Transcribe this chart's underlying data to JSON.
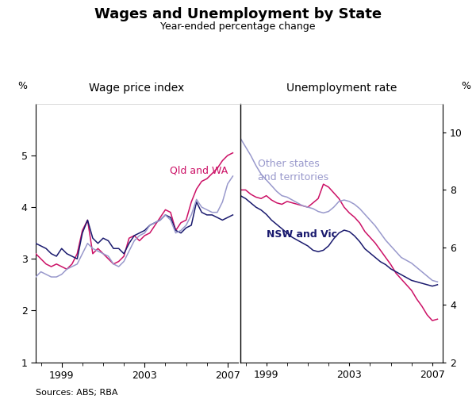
{
  "title": "Wages and Unemployment by State",
  "subtitle": "Year-ended percentage change",
  "left_panel_title": "Wage price index",
  "right_panel_title": "Unemployment rate",
  "source": "Sources: ABS; RBA",
  "left_ylabel": "%",
  "right_ylabel": "%",
  "left_ylim": [
    1,
    6
  ],
  "right_ylim": [
    2,
    11
  ],
  "left_yticks": [
    1,
    2,
    3,
    4,
    5
  ],
  "right_yticks": [
    2,
    4,
    6,
    8,
    10
  ],
  "left_ytick_labels": [
    "1",
    "2",
    "3",
    "4",
    "5"
  ],
  "right_ytick_labels": [
    "2",
    "4",
    "6",
    "8",
    "10"
  ],
  "background_color": "#f0f0f0",
  "panel_bg": "#f0f0f0",
  "grid_color": "#ffffff",
  "wpi_x": [
    1997.75,
    1998.0,
    1998.25,
    1998.5,
    1998.75,
    1999.0,
    1999.25,
    1999.5,
    1999.75,
    2000.0,
    2000.25,
    2000.5,
    2000.75,
    2001.0,
    2001.25,
    2001.5,
    2001.75,
    2002.0,
    2002.25,
    2002.5,
    2002.75,
    2003.0,
    2003.25,
    2003.5,
    2003.75,
    2004.0,
    2004.25,
    2004.5,
    2004.75,
    2005.0,
    2005.25,
    2005.5,
    2005.75,
    2006.0,
    2006.25,
    2006.5,
    2006.75,
    2007.0,
    2007.25
  ],
  "wpi_qldwa": [
    3.1,
    3.0,
    2.9,
    2.85,
    2.9,
    2.85,
    2.8,
    2.9,
    3.1,
    3.55,
    3.75,
    3.1,
    3.2,
    3.1,
    3.0,
    2.9,
    2.95,
    3.05,
    3.4,
    3.45,
    3.35,
    3.45,
    3.5,
    3.65,
    3.8,
    3.95,
    3.9,
    3.55,
    3.7,
    3.75,
    4.1,
    4.35,
    4.5,
    4.55,
    4.65,
    4.75,
    4.9,
    5.0,
    5.05
  ],
  "wpi_nswvic": [
    3.3,
    3.25,
    3.2,
    3.1,
    3.05,
    3.2,
    3.1,
    3.05,
    3.0,
    3.5,
    3.75,
    3.4,
    3.3,
    3.4,
    3.35,
    3.2,
    3.2,
    3.1,
    3.3,
    3.45,
    3.5,
    3.55,
    3.65,
    3.7,
    3.75,
    3.85,
    3.8,
    3.55,
    3.5,
    3.6,
    3.65,
    4.1,
    3.9,
    3.85,
    3.85,
    3.8,
    3.75,
    3.8,
    3.85
  ],
  "wpi_other": [
    2.65,
    2.75,
    2.7,
    2.65,
    2.65,
    2.7,
    2.8,
    2.85,
    2.9,
    3.1,
    3.3,
    3.2,
    3.15,
    3.1,
    3.05,
    2.9,
    2.85,
    2.95,
    3.15,
    3.35,
    3.45,
    3.5,
    3.65,
    3.7,
    3.75,
    3.85,
    3.75,
    3.5,
    3.55,
    3.65,
    3.85,
    4.15,
    4.0,
    3.95,
    3.9,
    3.9,
    4.1,
    4.45,
    4.6
  ],
  "unemp_x": [
    1997.75,
    1998.0,
    1998.25,
    1998.5,
    1998.75,
    1999.0,
    1999.25,
    1999.5,
    1999.75,
    2000.0,
    2000.25,
    2000.5,
    2000.75,
    2001.0,
    2001.25,
    2001.5,
    2001.75,
    2002.0,
    2002.25,
    2002.5,
    2002.75,
    2003.0,
    2003.25,
    2003.5,
    2003.75,
    2004.0,
    2004.25,
    2004.5,
    2004.75,
    2005.0,
    2005.25,
    2005.5,
    2005.75,
    2006.0,
    2006.25,
    2006.5,
    2006.75,
    2007.0,
    2007.25
  ],
  "unemp_qldwa": [
    8.0,
    8.0,
    7.85,
    7.75,
    7.7,
    7.8,
    7.65,
    7.55,
    7.5,
    7.6,
    7.55,
    7.5,
    7.45,
    7.4,
    7.55,
    7.7,
    8.2,
    8.1,
    7.9,
    7.7,
    7.4,
    7.2,
    7.05,
    6.85,
    6.55,
    6.35,
    6.15,
    5.9,
    5.65,
    5.4,
    5.1,
    4.9,
    4.7,
    4.5,
    4.2,
    3.95,
    3.65,
    3.45,
    3.5
  ],
  "unemp_nswvic": [
    7.8,
    7.7,
    7.55,
    7.4,
    7.3,
    7.15,
    6.95,
    6.8,
    6.65,
    6.5,
    6.35,
    6.25,
    6.15,
    6.05,
    5.9,
    5.85,
    5.9,
    6.05,
    6.3,
    6.5,
    6.6,
    6.55,
    6.4,
    6.2,
    5.95,
    5.8,
    5.65,
    5.5,
    5.4,
    5.25,
    5.15,
    5.05,
    4.95,
    4.85,
    4.8,
    4.75,
    4.7,
    4.65,
    4.7
  ],
  "unemp_other": [
    9.8,
    9.5,
    9.2,
    8.85,
    8.55,
    8.35,
    8.15,
    7.95,
    7.8,
    7.75,
    7.65,
    7.55,
    7.45,
    7.4,
    7.35,
    7.25,
    7.2,
    7.25,
    7.4,
    7.6,
    7.65,
    7.6,
    7.5,
    7.35,
    7.15,
    6.95,
    6.75,
    6.5,
    6.25,
    6.05,
    5.85,
    5.65,
    5.55,
    5.45,
    5.3,
    5.15,
    5.0,
    4.85,
    4.8
  ],
  "color_qldwa": "#cc1166",
  "color_nswvic": "#1a1a6e",
  "color_other": "#9999cc",
  "left_xticks": [
    1999,
    2003,
    2007
  ],
  "left_xtick_labels": [
    "1999",
    "2003",
    "2007"
  ],
  "right_xticks": [
    1999,
    2003,
    2007
  ],
  "right_xtick_labels": [
    "1999",
    "2003",
    "2007"
  ],
  "minor_xticks_left": [
    1998,
    1999,
    2000,
    2001,
    2002,
    2003,
    2004,
    2005,
    2006,
    2007
  ],
  "minor_xticks_right": [
    1998,
    1999,
    2000,
    2001,
    2002,
    2003,
    2004,
    2005,
    2006,
    2007
  ]
}
